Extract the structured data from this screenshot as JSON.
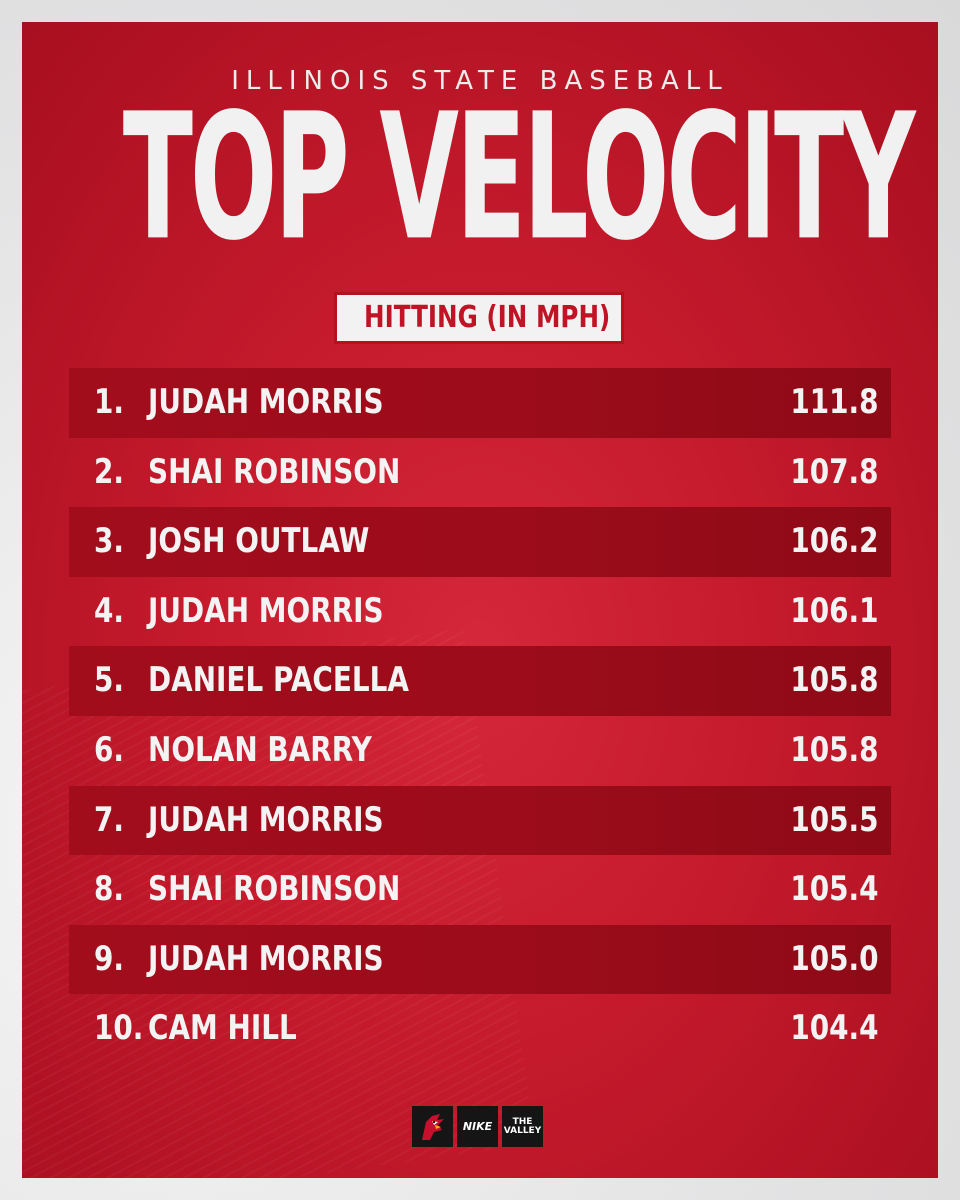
{
  "header": {
    "subtitle": "ILLINOIS STATE BASEBALL",
    "title": "TOP VELOCITY",
    "badge": "HITTING (IN MPH)"
  },
  "leaderboard": [
    {
      "rank": "1.",
      "name": "JUDAH MORRIS",
      "value": "111.8"
    },
    {
      "rank": "2.",
      "name": "SHAI ROBINSON",
      "value": "107.8"
    },
    {
      "rank": "3.",
      "name": "JOSH OUTLAW",
      "value": "106.2"
    },
    {
      "rank": "4.",
      "name": "JUDAH MORRIS",
      "value": "106.1"
    },
    {
      "rank": "5.",
      "name": "DANIEL PACELLA",
      "value": "105.8"
    },
    {
      "rank": "6.",
      "name": "NOLAN BARRY",
      "value": "105.8"
    },
    {
      "rank": "7.",
      "name": "JUDAH MORRIS",
      "value": "105.5"
    },
    {
      "rank": "8.",
      "name": "SHAI ROBINSON",
      "value": "105.4"
    },
    {
      "rank": "9.",
      "name": "JUDAH MORRIS",
      "value": "105.0"
    },
    {
      "rank": "10.",
      "name": "CAM HILL",
      "value": "104.4"
    }
  ],
  "footer": {
    "logos": [
      {
        "icon": "redbird-logo-icon"
      },
      {
        "icon": "nike-logo-icon",
        "text": "NIKE"
      },
      {
        "icon": "the-valley-logo-icon",
        "text_top": "THE",
        "text_main": "VALLEY"
      }
    ]
  },
  "colors": {
    "brand_red": "#c41a2c",
    "row_shade": "#9c0c1a",
    "text_light": "#f3f3f3"
  }
}
